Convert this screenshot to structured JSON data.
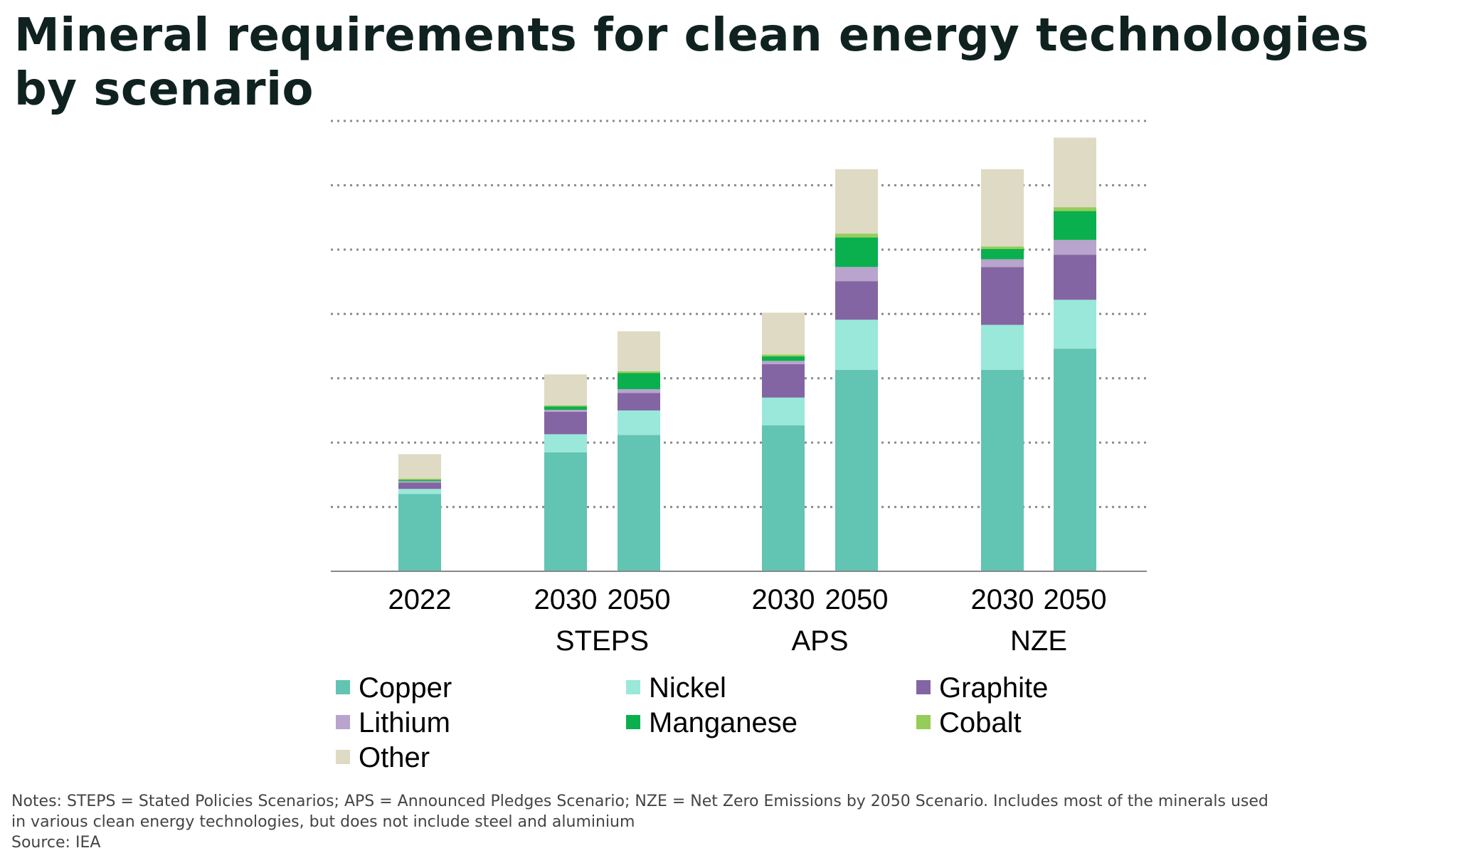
{
  "title": "Mineral requirements for clean energy technologies by scenario",
  "chart_data": {
    "type": "bar",
    "stacked": true,
    "categories": [
      "2022",
      "2030",
      "2050",
      "2030",
      "2050",
      "2030",
      "2050"
    ],
    "groups": [
      {
        "label": "",
        "categories": [
          "2022"
        ]
      },
      {
        "label": "STEPS",
        "categories": [
          "2030",
          "2050"
        ]
      },
      {
        "label": "APS",
        "categories": [
          "2030",
          "2050"
        ]
      },
      {
        "label": "NZE",
        "categories": [
          "2030",
          "2050"
        ]
      }
    ],
    "series": [
      {
        "name": "Copper",
        "color": "#62c4b2",
        "values": [
          1.2,
          1.85,
          2.12,
          2.27,
          3.13,
          3.13,
          3.46
        ]
      },
      {
        "name": "Nickel",
        "color": "#9ae8d9",
        "values": [
          0.08,
          0.28,
          0.38,
          0.43,
          0.78,
          0.7,
          0.76
        ]
      },
      {
        "name": "Graphite",
        "color": "#8365a3",
        "values": [
          0.1,
          0.35,
          0.27,
          0.52,
          0.6,
          0.9,
          0.7
        ]
      },
      {
        "name": "Lithium",
        "color": "#b8a4cc",
        "values": [
          0.02,
          0.03,
          0.06,
          0.05,
          0.22,
          0.12,
          0.23
        ]
      },
      {
        "name": "Manganese",
        "color": "#0ab04e",
        "values": [
          0.02,
          0.05,
          0.25,
          0.07,
          0.46,
          0.16,
          0.45
        ]
      },
      {
        "name": "Cobalt",
        "color": "#96cc58",
        "values": [
          0.02,
          0.02,
          0.03,
          0.03,
          0.06,
          0.04,
          0.06
        ]
      },
      {
        "name": "Other",
        "color": "#dedac4",
        "values": [
          0.38,
          0.48,
          0.62,
          0.65,
          1.0,
          1.2,
          1.08
        ]
      }
    ],
    "ylim": [
      0,
      7
    ],
    "grid": true,
    "y_tick_labels": false,
    "legend_position": "bottom"
  },
  "notes": {
    "line1": "Notes: STEPS = Stated Policies Scenarios; APS = Announced Pledges Scenario; NZE = Net Zero Emissions by 2050 Scenario. Includes most of the minerals used",
    "line2": "in various clean energy technologies, but does not include steel and aluminium",
    "source": "Source: IEA"
  }
}
